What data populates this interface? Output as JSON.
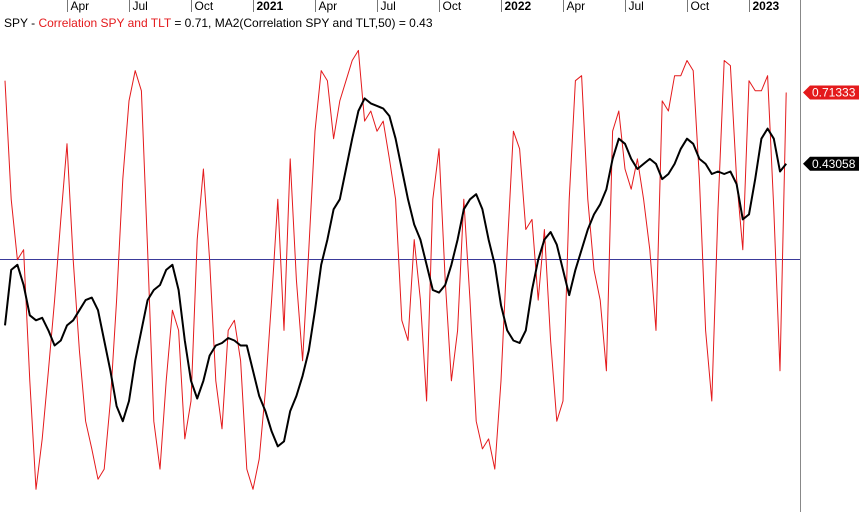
{
  "chart_data": {
    "type": "line",
    "title": "SPY -",
    "categories": [
      null,
      null,
      null,
      null,
      null,
      null,
      null,
      null,
      null,
      null,
      "Apr",
      null,
      null,
      null,
      null,
      null,
      null,
      null,
      null,
      null,
      "Jul",
      null,
      null,
      null,
      null,
      null,
      null,
      null,
      null,
      null,
      "Oct",
      null,
      null,
      null,
      null,
      null,
      null,
      null,
      null,
      null,
      "2021",
      null,
      null,
      null,
      null,
      null,
      null,
      null,
      null,
      null,
      "Apr",
      null,
      null,
      null,
      null,
      null,
      null,
      null,
      null,
      null,
      "Jul",
      null,
      null,
      null,
      null,
      null,
      null,
      null,
      null,
      null,
      "Oct",
      null,
      null,
      null,
      null,
      null,
      null,
      null,
      null,
      null,
      "2022",
      null,
      null,
      null,
      null,
      null,
      null,
      null,
      null,
      null,
      "Apr",
      null,
      null,
      null,
      null,
      null,
      null,
      null,
      null,
      null,
      "Jul",
      null,
      null,
      null,
      null,
      null,
      null,
      null,
      null,
      null,
      "Oct",
      null,
      null,
      null,
      null,
      null,
      null,
      null,
      null,
      null,
      "2023",
      null,
      null,
      null,
      null,
      null,
      null
    ],
    "series": [
      {
        "name": "Correlation SPY and TLT",
        "legend_value": "= 0.71,",
        "color": "#e41a1c",
        "values": [
          0.76,
          0.29,
          0.05,
          0.09,
          -0.43,
          -0.86,
          -0.66,
          -0.39,
          -0.11,
          0.21,
          0.51,
          0.05,
          -0.31,
          -0.59,
          -0.7,
          -0.82,
          -0.78,
          -0.51,
          -0.11,
          0.37,
          0.68,
          0.8,
          0.72,
          0.09,
          -0.59,
          -0.78,
          -0.43,
          -0.15,
          -0.23,
          -0.66,
          -0.51,
          0.13,
          0.41,
          0.05,
          -0.43,
          -0.62,
          -0.23,
          -0.19,
          -0.35,
          -0.78,
          -0.86,
          -0.74,
          -0.47,
          -0.11,
          0.29,
          -0.23,
          0.45,
          -0.03,
          -0.35,
          0.09,
          0.56,
          0.8,
          0.76,
          0.53,
          0.68,
          0.76,
          0.84,
          0.88,
          0.6,
          0.64,
          0.56,
          0.6,
          0.45,
          0.29,
          -0.19,
          -0.27,
          0.13,
          -0.11,
          -0.51,
          0.29,
          0.49,
          -0.03,
          -0.43,
          -0.23,
          0.29,
          -0.11,
          -0.59,
          -0.7,
          -0.66,
          -0.78,
          -0.43,
          0.09,
          0.56,
          0.49,
          0.17,
          0.21,
          -0.11,
          0.17,
          -0.27,
          -0.59,
          -0.51,
          0.29,
          0.76,
          0.78,
          0.29,
          0.01,
          -0.11,
          -0.39,
          0.56,
          0.64,
          0.41,
          0.33,
          0.45,
          0.29,
          0.09,
          -0.23,
          0.68,
          0.64,
          0.78,
          0.78,
          0.84,
          0.8,
          0.37,
          -0.23,
          -0.51,
          0.25,
          0.84,
          0.82,
          0.37,
          0.09,
          0.76,
          0.72,
          0.72,
          0.78,
          0.25,
          -0.39,
          0.71333
        ]
      },
      {
        "name": "MA2(Correlation SPY and TLT,50)",
        "legend_value": "= 0.43",
        "color": "#000000",
        "values": [
          -0.21,
          0.01,
          0.03,
          -0.05,
          -0.17,
          -0.19,
          -0.18,
          -0.23,
          -0.29,
          -0.27,
          -0.21,
          -0.19,
          -0.15,
          -0.11,
          -0.1,
          -0.15,
          -0.27,
          -0.39,
          -0.53,
          -0.59,
          -0.51,
          -0.35,
          -0.23,
          -0.11,
          -0.07,
          -0.05,
          0.01,
          0.03,
          -0.07,
          -0.27,
          -0.43,
          -0.5,
          -0.43,
          -0.33,
          -0.29,
          -0.28,
          -0.26,
          -0.27,
          -0.29,
          -0.29,
          -0.39,
          -0.49,
          -0.55,
          -0.63,
          -0.69,
          -0.67,
          -0.55,
          -0.49,
          -0.41,
          -0.31,
          -0.15,
          0.03,
          0.13,
          0.25,
          0.29,
          0.41,
          0.53,
          0.64,
          0.69,
          0.67,
          0.66,
          0.65,
          0.62,
          0.53,
          0.41,
          0.29,
          0.19,
          0.13,
          0.03,
          -0.07,
          -0.08,
          -0.05,
          0.03,
          0.13,
          0.25,
          0.29,
          0.31,
          0.25,
          0.13,
          0.03,
          -0.13,
          -0.23,
          -0.27,
          -0.28,
          -0.23,
          -0.07,
          0.05,
          0.13,
          0.16,
          0.11,
          0.01,
          -0.09,
          0.01,
          0.09,
          0.17,
          0.23,
          0.27,
          0.33,
          0.45,
          0.53,
          0.51,
          0.45,
          0.41,
          0.43,
          0.45,
          0.43,
          0.37,
          0.39,
          0.43,
          0.49,
          0.53,
          0.51,
          0.45,
          0.43,
          0.39,
          0.4,
          0.39,
          0.4,
          0.35,
          0.21,
          0.23,
          0.37,
          0.53,
          0.57,
          0.53,
          0.4,
          0.43058
        ]
      }
    ],
    "ylim": [
      -0.95,
      1.08
    ]
  }
}
